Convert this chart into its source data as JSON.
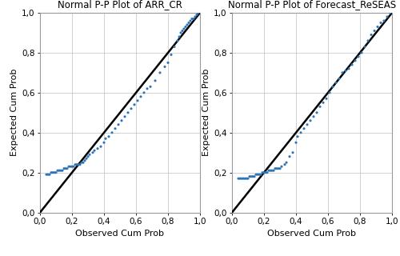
{
  "title1": "Normal P-P Plot of ARR_CR",
  "title2": "Normal P-P Plot of Forecast_ReSEAS",
  "xlabel": "Observed Cum Prob",
  "ylabel": "Expected Cum Prob",
  "xlim": [
    0.0,
    1.0
  ],
  "ylim": [
    0.0,
    1.0
  ],
  "xticks": [
    0.0,
    0.2,
    0.4,
    0.6,
    0.8,
    1.0
  ],
  "yticks": [
    0.0,
    0.2,
    0.4,
    0.6,
    0.8,
    1.0
  ],
  "dot_color": "#2e75b6",
  "dot_size": 5,
  "line_color": "#000000",
  "bg_color": "#ffffff",
  "grid_color": "#c0c0c0",
  "title_fontsize": 8.5,
  "label_fontsize": 8,
  "tick_fontsize": 7.5,
  "figsize": [
    5.0,
    3.2
  ],
  "dpi": 100,
  "arr_cr_obs": [
    0.04,
    0.05,
    0.06,
    0.07,
    0.08,
    0.09,
    0.1,
    0.11,
    0.12,
    0.13,
    0.14,
    0.15,
    0.16,
    0.17,
    0.18,
    0.19,
    0.2,
    0.21,
    0.22,
    0.23,
    0.24,
    0.25,
    0.26,
    0.27,
    0.28,
    0.29,
    0.3,
    0.31,
    0.33,
    0.34,
    0.36,
    0.38,
    0.4,
    0.41,
    0.43,
    0.45,
    0.47,
    0.49,
    0.51,
    0.53,
    0.55,
    0.57,
    0.59,
    0.61,
    0.63,
    0.65,
    0.67,
    0.69,
    0.72,
    0.75,
    0.78,
    0.8,
    0.82,
    0.84,
    0.86,
    0.87,
    0.88,
    0.89,
    0.9,
    0.91,
    0.92,
    0.93,
    0.94,
    0.95,
    0.96,
    0.97,
    0.98,
    0.99
  ],
  "arr_cr_exp": [
    0.19,
    0.19,
    0.19,
    0.2,
    0.2,
    0.2,
    0.2,
    0.21,
    0.21,
    0.21,
    0.21,
    0.22,
    0.22,
    0.22,
    0.23,
    0.23,
    0.23,
    0.23,
    0.24,
    0.24,
    0.24,
    0.24,
    0.25,
    0.25,
    0.26,
    0.27,
    0.28,
    0.29,
    0.3,
    0.31,
    0.32,
    0.33,
    0.35,
    0.37,
    0.38,
    0.4,
    0.42,
    0.44,
    0.46,
    0.48,
    0.5,
    0.52,
    0.54,
    0.56,
    0.58,
    0.6,
    0.62,
    0.63,
    0.66,
    0.7,
    0.73,
    0.75,
    0.79,
    0.83,
    0.86,
    0.88,
    0.9,
    0.91,
    0.92,
    0.93,
    0.94,
    0.95,
    0.96,
    0.97,
    0.97,
    0.98,
    0.99,
    1.0
  ],
  "reseas_obs": [
    0.04,
    0.05,
    0.06,
    0.07,
    0.08,
    0.09,
    0.1,
    0.11,
    0.12,
    0.13,
    0.14,
    0.15,
    0.16,
    0.17,
    0.18,
    0.19,
    0.2,
    0.21,
    0.22,
    0.23,
    0.24,
    0.25,
    0.26,
    0.27,
    0.28,
    0.29,
    0.3,
    0.31,
    0.33,
    0.34,
    0.36,
    0.38,
    0.4,
    0.41,
    0.43,
    0.45,
    0.47,
    0.49,
    0.51,
    0.53,
    0.55,
    0.57,
    0.59,
    0.61,
    0.63,
    0.65,
    0.67,
    0.69,
    0.71,
    0.73,
    0.75,
    0.77,
    0.79,
    0.81,
    0.83,
    0.85,
    0.87,
    0.89,
    0.91,
    0.93,
    0.95,
    0.97,
    0.99
  ],
  "reseas_exp": [
    0.17,
    0.17,
    0.17,
    0.17,
    0.17,
    0.17,
    0.17,
    0.18,
    0.18,
    0.18,
    0.18,
    0.19,
    0.19,
    0.19,
    0.19,
    0.2,
    0.2,
    0.2,
    0.2,
    0.21,
    0.21,
    0.21,
    0.21,
    0.22,
    0.22,
    0.22,
    0.22,
    0.23,
    0.24,
    0.25,
    0.28,
    0.3,
    0.35,
    0.38,
    0.4,
    0.42,
    0.44,
    0.46,
    0.48,
    0.5,
    0.53,
    0.55,
    0.57,
    0.6,
    0.63,
    0.65,
    0.67,
    0.7,
    0.71,
    0.72,
    0.74,
    0.76,
    0.78,
    0.8,
    0.83,
    0.86,
    0.89,
    0.91,
    0.93,
    0.95,
    0.96,
    0.98,
    1.0
  ]
}
